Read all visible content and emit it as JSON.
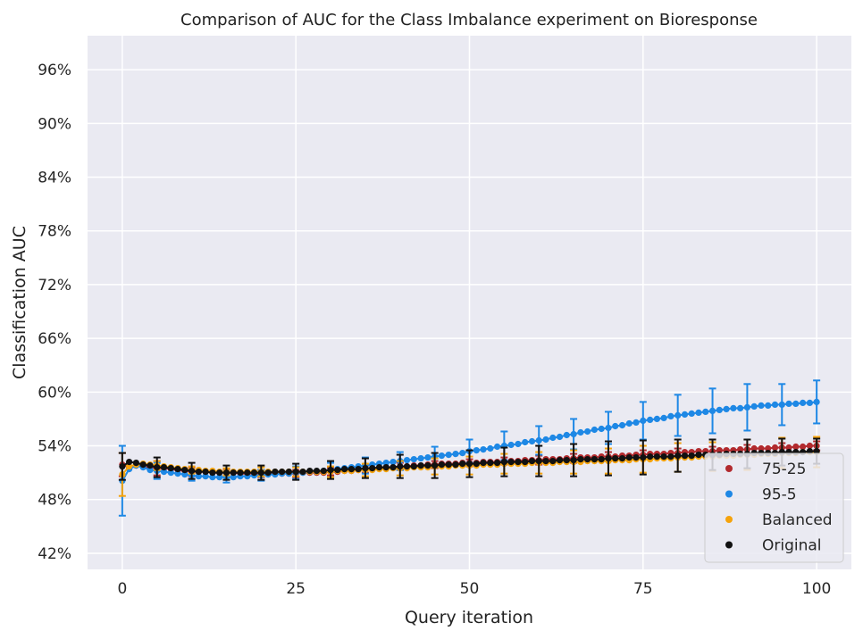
{
  "chart_data": {
    "type": "scatter",
    "title": "Comparison of AUC for the Class Imbalance experiment on Bioresponse",
    "xlabel": "Query iteration",
    "ylabel": "Classification AUC",
    "xlim": [
      -5,
      105
    ],
    "ylim": [
      40.2,
      99.8
    ],
    "xticks": [
      0,
      25,
      50,
      75,
      100
    ],
    "xtick_labels": [
      "0",
      "25",
      "50",
      "75",
      "100"
    ],
    "yticks": [
      42,
      48,
      54,
      60,
      66,
      72,
      78,
      84,
      90,
      96
    ],
    "ytick_labels": [
      "42%",
      "48%",
      "54%",
      "60%",
      "66%",
      "72%",
      "78%",
      "84%",
      "90%",
      "96%"
    ],
    "grid": true,
    "legend_position": "lower-right",
    "error_bar_every": 5,
    "series": [
      {
        "name": "75-25",
        "color": "#b22a2e",
        "y": [
          51.9,
          51.6,
          51.8,
          51.7,
          51.6,
          51.5,
          51.5,
          51.4,
          51.3,
          51.2,
          51.1,
          51.1,
          51.1,
          51.0,
          51.0,
          51.0,
          51.0,
          50.9,
          50.9,
          50.9,
          50.9,
          50.9,
          50.9,
          50.9,
          50.9,
          50.9,
          51.0,
          51.0,
          51.0,
          51.0,
          51.1,
          51.1,
          51.2,
          51.2,
          51.3,
          51.4,
          51.5,
          51.5,
          51.6,
          51.6,
          51.7,
          51.7,
          51.8,
          51.8,
          51.9,
          51.9,
          52.0,
          52.0,
          52.0,
          52.1,
          52.1,
          52.1,
          52.2,
          52.2,
          52.2,
          52.3,
          52.3,
          52.3,
          52.4,
          52.4,
          52.4,
          52.5,
          52.5,
          52.5,
          52.6,
          52.6,
          52.7,
          52.7,
          52.7,
          52.8,
          52.8,
          52.8,
          52.9,
          52.9,
          53.0,
          53.0,
          53.1,
          53.1,
          53.1,
          53.2,
          53.2,
          53.3,
          53.3,
          53.4,
          53.4,
          53.4,
          53.5,
          53.5,
          53.5,
          53.6,
          53.6,
          53.7,
          53.7,
          53.7,
          53.8,
          53.8,
          53.8,
          53.9,
          53.9,
          54.0,
          54.0
        ],
        "err": [
          1.3,
          1.0,
          1.0,
          1.0,
          1.0,
          0.8,
          0.7,
          0.7,
          0.7,
          0.7,
          0.5,
          0.5,
          0.5,
          0.5,
          0.5,
          0.4,
          0.4,
          0.4,
          0.4,
          0.4,
          0.4,
          0.4,
          0.4,
          0.4,
          0.4,
          0.4,
          0.4,
          0.4,
          0.4,
          0.4,
          0.4,
          0.4,
          0.4,
          0.4,
          0.4,
          0.4,
          0.4,
          0.4,
          0.4,
          0.4,
          0.4,
          0.4,
          0.4,
          0.4,
          0.4,
          0.4,
          0.4,
          0.4,
          0.4,
          0.4,
          0.4,
          0.4,
          0.4,
          0.4,
          0.4,
          0.4,
          0.4,
          0.4,
          0.4,
          0.4,
          0.5,
          0.5,
          0.5,
          0.5,
          0.5,
          0.5,
          0.5,
          0.5,
          0.5,
          0.5,
          0.5,
          0.5,
          0.5,
          0.5,
          0.5,
          0.5,
          0.5,
          0.5,
          0.5,
          0.5,
          0.5,
          0.5,
          0.5,
          0.5,
          0.5,
          0.5,
          0.5,
          0.5,
          0.5,
          0.5,
          0.5,
          0.5,
          0.5,
          0.5,
          0.5,
          0.5,
          0.5,
          0.5,
          0.5,
          0.5,
          0.5
        ]
      },
      {
        "name": "95-5",
        "color": "#1e88e5",
        "y": [
          50.1,
          51.4,
          51.8,
          51.6,
          51.3,
          51.2,
          51.1,
          51.0,
          50.9,
          50.8,
          50.7,
          50.6,
          50.6,
          50.5,
          50.5,
          50.5,
          50.5,
          50.6,
          50.6,
          50.7,
          50.7,
          50.8,
          50.8,
          50.9,
          50.9,
          51.0,
          51.0,
          51.1,
          51.1,
          51.2,
          51.3,
          51.4,
          51.5,
          51.6,
          51.7,
          51.8,
          51.9,
          52.0,
          52.1,
          52.2,
          52.3,
          52.4,
          52.5,
          52.6,
          52.7,
          52.8,
          52.9,
          53.0,
          53.1,
          53.2,
          53.4,
          53.5,
          53.6,
          53.7,
          53.9,
          54.0,
          54.1,
          54.2,
          54.4,
          54.5,
          54.6,
          54.7,
          54.9,
          55.0,
          55.2,
          55.3,
          55.5,
          55.6,
          55.8,
          55.9,
          56.0,
          56.2,
          56.3,
          56.5,
          56.6,
          56.8,
          56.9,
          57.0,
          57.1,
          57.3,
          57.4,
          57.5,
          57.6,
          57.7,
          57.8,
          57.9,
          58.0,
          58.1,
          58.2,
          58.2,
          58.3,
          58.4,
          58.5,
          58.5,
          58.6,
          58.6,
          58.7,
          58.7,
          58.8,
          58.8,
          58.9
        ],
        "err": [
          3.9,
          2.0,
          1.5,
          1.2,
          1.0,
          0.9,
          0.8,
          0.7,
          0.6,
          0.6,
          0.6,
          0.6,
          0.6,
          0.6,
          0.6,
          0.6,
          0.6,
          0.6,
          0.6,
          0.6,
          0.6,
          0.6,
          0.6,
          0.6,
          0.6,
          0.7,
          0.7,
          0.7,
          0.7,
          0.7,
          0.8,
          0.8,
          0.8,
          0.8,
          0.8,
          0.9,
          0.9,
          0.9,
          0.9,
          0.9,
          1.0,
          1.0,
          1.0,
          1.0,
          1.0,
          1.1,
          1.1,
          1.1,
          1.1,
          1.1,
          1.3,
          1.3,
          1.3,
          1.3,
          1.3,
          1.6,
          1.6,
          1.6,
          1.6,
          1.6,
          1.6,
          1.6,
          1.6,
          1.6,
          1.6,
          1.7,
          1.7,
          1.7,
          1.7,
          1.7,
          1.8,
          1.8,
          1.8,
          1.8,
          1.8,
          2.1,
          2.1,
          2.1,
          2.1,
          2.1,
          2.3,
          2.3,
          2.3,
          2.3,
          2.3,
          2.5,
          2.5,
          2.5,
          2.5,
          2.5,
          2.6,
          2.6,
          2.6,
          2.6,
          2.6,
          2.3,
          2.3,
          2.3,
          2.3,
          2.3,
          2.4
        ]
      },
      {
        "name": "Balanced",
        "color": "#f5a30c",
        "y": [
          50.8,
          51.7,
          51.9,
          52.0,
          51.9,
          51.8,
          51.7,
          51.6,
          51.5,
          51.4,
          51.3,
          51.3,
          51.2,
          51.2,
          51.1,
          51.1,
          51.1,
          51.1,
          51.1,
          51.1,
          51.1,
          51.1,
          51.1,
          51.1,
          51.1,
          51.1,
          51.1,
          51.1,
          51.1,
          51.1,
          51.1,
          51.2,
          51.2,
          51.2,
          51.3,
          51.3,
          51.3,
          51.4,
          51.4,
          51.5,
          51.5,
          51.5,
          51.6,
          51.6,
          51.6,
          51.7,
          51.7,
          51.7,
          51.8,
          51.8,
          51.8,
          51.8,
          51.9,
          51.9,
          51.9,
          52.0,
          52.0,
          52.0,
          52.0,
          52.1,
          52.1,
          52.1,
          52.1,
          52.2,
          52.2,
          52.2,
          52.2,
          52.3,
          52.3,
          52.3,
          52.3,
          52.4,
          52.4,
          52.4,
          52.5,
          52.5,
          52.5,
          52.6,
          52.6,
          52.6,
          52.7,
          52.7,
          52.7,
          52.8,
          52.8,
          52.8,
          52.9,
          52.9,
          52.9,
          53.0,
          53.0,
          53.0,
          53.1,
          53.1,
          53.1,
          53.2,
          53.2,
          53.2,
          53.3,
          53.3,
          53.3
        ],
        "err": [
          2.4,
          1.0,
          0.8,
          0.7,
          0.6,
          0.5,
          0.5,
          0.5,
          0.5,
          0.5,
          0.4,
          0.4,
          0.4,
          0.4,
          0.4,
          0.4,
          0.4,
          0.4,
          0.4,
          0.4,
          0.5,
          0.5,
          0.5,
          0.5,
          0.5,
          0.5,
          0.5,
          0.5,
          0.5,
          0.5,
          0.6,
          0.6,
          0.6,
          0.6,
          0.6,
          0.7,
          0.7,
          0.7,
          0.7,
          0.7,
          0.8,
          0.8,
          0.8,
          0.8,
          0.8,
          0.9,
          0.9,
          0.9,
          0.9,
          0.9,
          1.0,
          1.0,
          1.0,
          1.0,
          1.0,
          1.1,
          1.1,
          1.1,
          1.1,
          1.1,
          1.2,
          1.2,
          1.2,
          1.2,
          1.2,
          1.3,
          1.3,
          1.3,
          1.3,
          1.3,
          1.4,
          1.4,
          1.4,
          1.4,
          1.4,
          1.5,
          1.5,
          1.5,
          1.5,
          1.5,
          1.6,
          1.6,
          1.6,
          1.6,
          1.6,
          1.6,
          1.6,
          1.6,
          1.6,
          1.6,
          1.7,
          1.7,
          1.7,
          1.7,
          1.7,
          1.7,
          1.7,
          1.7,
          1.7,
          1.7,
          1.7
        ]
      },
      {
        "name": "Original",
        "color": "#111111",
        "y": [
          51.7,
          52.2,
          52.1,
          51.9,
          51.8,
          51.6,
          51.6,
          51.5,
          51.4,
          51.3,
          51.2,
          51.1,
          51.1,
          51.0,
          51.0,
          51.0,
          51.0,
          51.0,
          51.0,
          51.0,
          51.0,
          51.0,
          51.1,
          51.1,
          51.1,
          51.1,
          51.1,
          51.2,
          51.2,
          51.2,
          51.3,
          51.3,
          51.4,
          51.4,
          51.4,
          51.5,
          51.5,
          51.6,
          51.6,
          51.6,
          51.7,
          51.7,
          51.7,
          51.8,
          51.8,
          51.8,
          51.9,
          51.9,
          51.9,
          52.0,
          52.0,
          52.0,
          52.1,
          52.1,
          52.1,
          52.2,
          52.2,
          52.2,
          52.2,
          52.3,
          52.3,
          52.3,
          52.3,
          52.4,
          52.4,
          52.4,
          52.5,
          52.5,
          52.5,
          52.5,
          52.6,
          52.6,
          52.6,
          52.7,
          52.7,
          52.7,
          52.8,
          52.8,
          52.8,
          52.8,
          52.9,
          52.9,
          52.9,
          53.0,
          53.0,
          53.0,
          53.0,
          53.1,
          53.1,
          53.1,
          53.1,
          53.2,
          53.2,
          53.2,
          53.2,
          53.3,
          53.3,
          53.3,
          53.3,
          53.4,
          53.4
        ],
        "err": [
          1.5,
          0.8,
          0.8,
          0.8,
          0.8,
          1.1,
          1.1,
          1.1,
          1.1,
          1.1,
          0.9,
          0.9,
          0.9,
          0.9,
          0.9,
          0.8,
          0.8,
          0.8,
          0.8,
          0.8,
          0.8,
          0.8,
          0.8,
          0.8,
          0.8,
          0.9,
          0.9,
          0.9,
          0.9,
          0.9,
          1.0,
          1.0,
          1.0,
          1.0,
          1.0,
          1.1,
          1.1,
          1.1,
          1.1,
          1.1,
          1.3,
          1.3,
          1.3,
          1.3,
          1.3,
          1.4,
          1.4,
          1.4,
          1.4,
          1.4,
          1.5,
          1.5,
          1.5,
          1.5,
          1.5,
          1.6,
          1.6,
          1.6,
          1.6,
          1.6,
          1.7,
          1.7,
          1.7,
          1.7,
          1.7,
          1.8,
          1.8,
          1.8,
          1.8,
          1.8,
          1.9,
          1.9,
          1.9,
          1.9,
          1.9,
          1.9,
          1.9,
          1.9,
          1.9,
          1.9,
          1.8,
          1.8,
          1.8,
          1.8,
          1.8,
          1.7,
          1.7,
          1.7,
          1.7,
          1.7,
          1.6,
          1.6,
          1.6,
          1.6,
          1.6,
          1.5,
          1.5,
          1.5,
          1.5,
          1.5,
          1.4
        ]
      }
    ]
  }
}
